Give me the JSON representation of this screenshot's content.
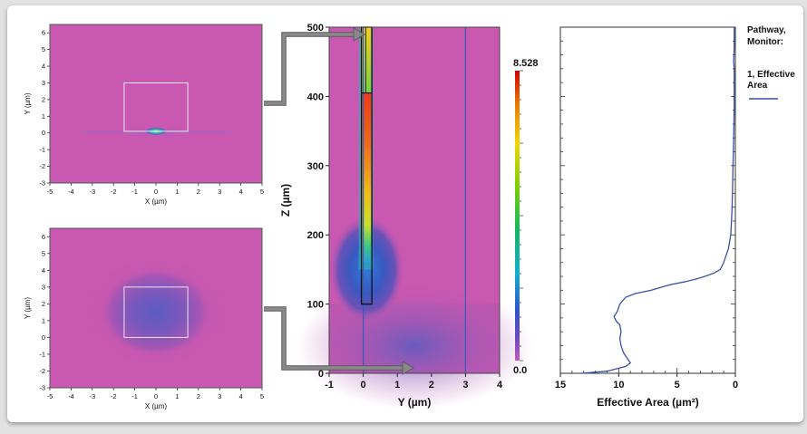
{
  "chart_data": [
    {
      "id": "field-start",
      "type": "heatmap",
      "title": "",
      "xlabel": "X (µm)",
      "ylabel": "Y (µm)",
      "xlim": [
        -5,
        5
      ],
      "ylim": [
        -3,
        6.5
      ],
      "xticks": [
        "-5",
        "-4",
        "-3",
        "-2",
        "-1",
        "0",
        "1",
        "2",
        "3",
        "4",
        "5"
      ],
      "yticks": [
        "-3",
        "-2",
        "-1",
        "0",
        "1",
        "2",
        "3",
        "4",
        "5",
        "6"
      ],
      "box": {
        "x": [
          -1.5,
          1.5
        ],
        "y": [
          0.1,
          3
        ]
      },
      "mode_center": {
        "x": 0,
        "y": 0.1
      },
      "background_color": "#c858b0"
    },
    {
      "id": "field-end",
      "type": "heatmap",
      "title": "",
      "xlabel": "X (µm)",
      "ylabel": "Y (µm)",
      "xlim": [
        -5,
        5
      ],
      "ylim": [
        -3,
        6.5
      ],
      "xticks": [
        "-5",
        "-4",
        "-3",
        "-2",
        "-1",
        "0",
        "1",
        "2",
        "3",
        "4",
        "5"
      ],
      "yticks": [
        "-3",
        "-2",
        "-1",
        "0",
        "1",
        "2",
        "3",
        "4",
        "5",
        "6"
      ],
      "box": {
        "x": [
          -1.5,
          1.5
        ],
        "y": [
          0,
          3
        ]
      },
      "mode_center": {
        "x": 0,
        "y": 1.5
      },
      "background_color": "#c858b0"
    },
    {
      "id": "propagation",
      "type": "heatmap",
      "title": "",
      "xlabel": "Y (µm)",
      "ylabel": "Z (µm)",
      "xlim": [
        -1,
        4
      ],
      "ylim": [
        0,
        500
      ],
      "xticks": [
        "-1",
        "0",
        "1",
        "2",
        "3",
        "4"
      ],
      "yticks": [
        "0",
        "100",
        "200",
        "300",
        "400",
        "500"
      ],
      "colorbar": {
        "max_label": "8.528",
        "min_label": "0.0",
        "min": 0.0,
        "max": 8.528
      },
      "waveguide_y": [
        0,
        0.2
      ],
      "waveguide_z": [
        100,
        500
      ],
      "taper_z": 405,
      "vertical_lines_y": [
        0,
        3
      ]
    },
    {
      "id": "effective-area",
      "type": "line",
      "title": "",
      "xlabel": "Effective Area (µm²)",
      "ylabel": "",
      "xlim": [
        15,
        0
      ],
      "ylim": [
        0,
        500
      ],
      "xticks": [
        "15",
        "10",
        "5",
        "0"
      ],
      "legend": {
        "title": "Pathway, Monitor:",
        "title_lines": [
          "Pathway,",
          "Monitor:"
        ],
        "entries": [
          {
            "name": "1, Effective Area",
            "name_lines": [
              "1, Effective",
              "Area"
            ],
            "color": "#3a4fa8"
          }
        ]
      },
      "series": [
        {
          "name": "1, Effective Area",
          "color": "#3a4fa8",
          "x": [
            13.2,
            11.0,
            9.4,
            9.0,
            9.2,
            9.6,
            9.8,
            9.9,
            9.8,
            9.9,
            10.2,
            10.4,
            10.1,
            9.9,
            9.4,
            8.6,
            7.2,
            5.6,
            4.4,
            3.4,
            2.6,
            1.8,
            1.3,
            1.0,
            0.8,
            0.6,
            0.4,
            0.3,
            0.25,
            0.2,
            0.15,
            0.1,
            0.1,
            0.1,
            0.15,
            0.1,
            0.1
          ],
          "y": [
            0,
            3,
            10,
            15,
            20,
            30,
            40,
            50,
            60,
            70,
            75,
            82,
            90,
            100,
            110,
            115,
            120,
            128,
            132,
            136,
            140,
            145,
            150,
            160,
            170,
            180,
            200,
            230,
            260,
            300,
            340,
            380,
            420,
            440,
            450,
            470,
            500
          ]
        }
      ]
    }
  ]
}
